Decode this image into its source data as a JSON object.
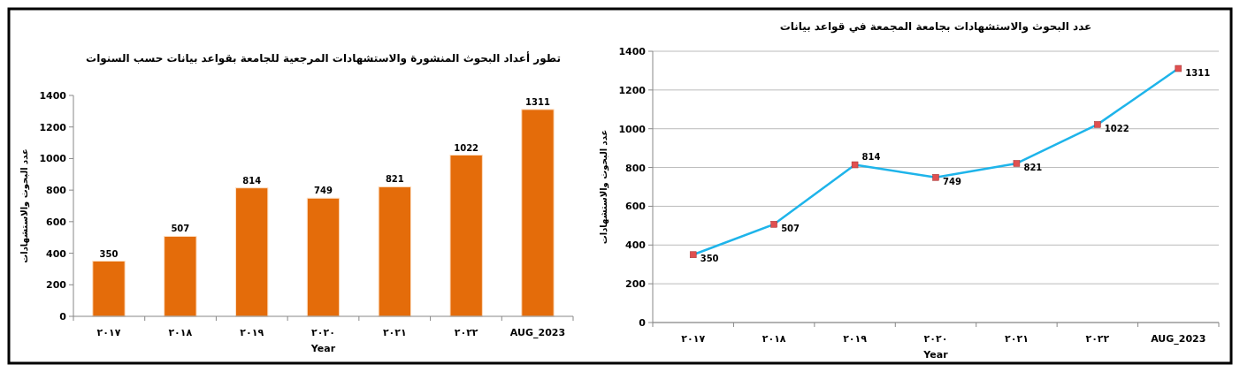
{
  "chart_data": [
    {
      "type": "bar",
      "title": "تطور أعداد البحوث المنشورة والاستشهادات المرجعية للجامعة بقواعد بيانات حسب السنوات",
      "xlabel": "Year",
      "ylabel": "عدد البحوث والاستشهادات",
      "categories": [
        "٢٠١٧",
        "٢٠١٨",
        "٢٠١٩",
        "٢٠٢٠",
        "٢٠٢١",
        "٢٠٢٢",
        "AUG_2023"
      ],
      "values": [
        350,
        507,
        814,
        749,
        821,
        1022,
        1311
      ],
      "color": "#e46c0a",
      "ylim": [
        0,
        1400
      ],
      "yticks": [
        0,
        200,
        400,
        600,
        800,
        1000,
        1200,
        1400
      ],
      "grid": false,
      "data_labels": true
    },
    {
      "type": "line",
      "title": "عدد البحوث والاستشهادات بجامعة المجمعة في قواعد بيانات",
      "xlabel": "Year",
      "ylabel": "عدد البحوث والاستشهادات",
      "categories": [
        "٢٠١٧",
        "٢٠١٨",
        "٢٠١٩",
        "٢٠٢٠",
        "٢٠٢١",
        "٢٠٢٢",
        "AUG_2023"
      ],
      "series": [
        {
          "color": "#1eb4ea",
          "values": [
            350,
            507,
            814,
            749,
            821,
            1022,
            1311
          ]
        }
      ],
      "marker": "square",
      "ylim": [
        0,
        1400
      ],
      "yticks": [
        0,
        200,
        400,
        600,
        800,
        1000,
        1200,
        1400
      ],
      "grid": "y",
      "data_labels": true
    }
  ]
}
